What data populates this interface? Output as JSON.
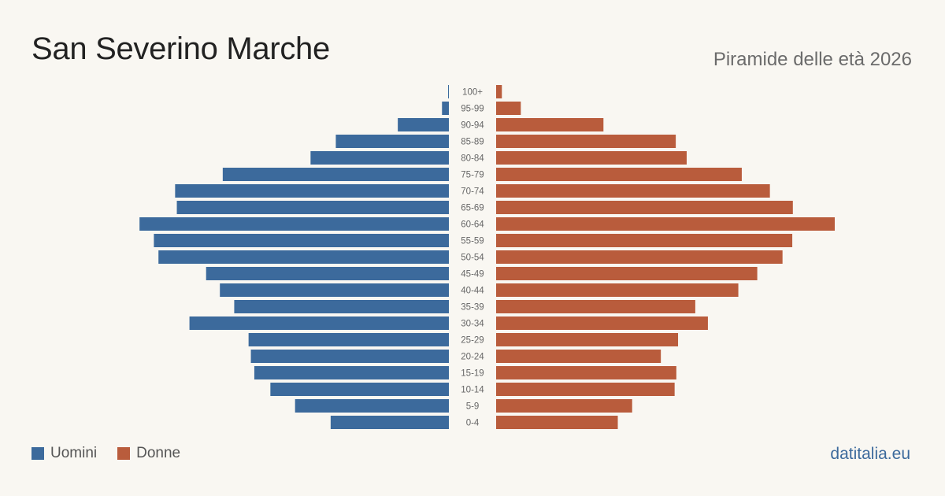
{
  "header": {
    "title": "San Severino Marche",
    "subtitle": "Piramide delle età 2026"
  },
  "legend": {
    "items": [
      {
        "label": "Uomini",
        "color": "#3c6a9c"
      },
      {
        "label": "Donne",
        "color": "#b95c3c"
      }
    ]
  },
  "footer": {
    "brand": "datitalia.eu"
  },
  "chart_data": {
    "type": "bar",
    "orientation": "horizontal-pyramid",
    "categories": [
      "100+",
      "95-99",
      "90-94",
      "85-89",
      "80-84",
      "75-79",
      "70-74",
      "65-69",
      "60-64",
      "55-59",
      "50-54",
      "45-49",
      "40-44",
      "35-39",
      "30-34",
      "25-29",
      "20-24",
      "15-19",
      "10-14",
      "5-9",
      "0-4"
    ],
    "series": [
      {
        "name": "Uomini",
        "color": "#3c6a9c",
        "values": [
          1,
          12,
          89,
          197,
          241,
          394,
          477,
          474,
          539,
          514,
          506,
          423,
          399,
          374,
          452,
          349,
          345,
          339,
          311,
          268,
          206
        ]
      },
      {
        "name": "Donne",
        "color": "#b95c3c",
        "values": [
          10,
          43,
          187,
          313,
          332,
          428,
          477,
          517,
          590,
          516,
          499,
          455,
          422,
          347,
          369,
          317,
          287,
          314,
          311,
          237,
          212
        ]
      }
    ],
    "grid": false,
    "legend_position": "bottom-left"
  }
}
